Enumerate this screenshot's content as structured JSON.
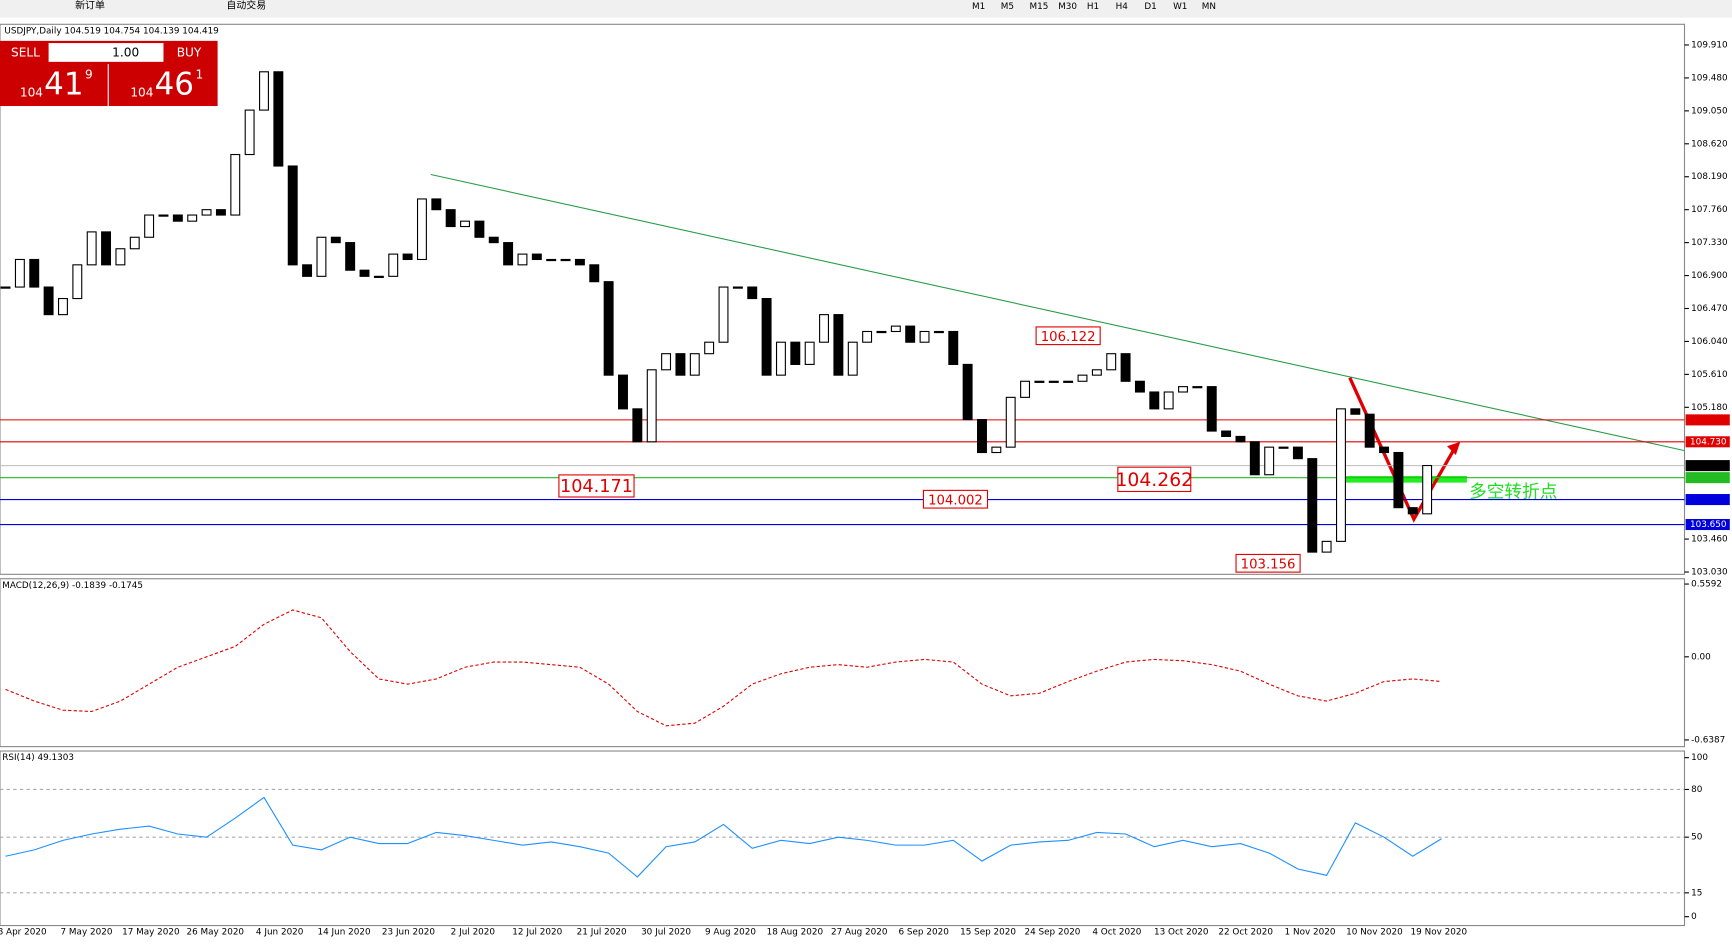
{
  "toolbar": {
    "buttons": [
      "新订单",
      "自动交易"
    ],
    "timeframes": [
      "M1",
      "M5",
      "M15",
      "M30",
      "H1",
      "H4",
      "D1",
      "W1",
      "MN"
    ]
  },
  "trade_panel": {
    "sell": "SELL",
    "lot": "1.00",
    "buy": "BUY",
    "sell_price": {
      "big": "104",
      "main": "41",
      "small": "9"
    },
    "buy_price": {
      "big": "104",
      "main": "46",
      "small": "1"
    }
  },
  "chart_data": [
    {
      "type": "candlestick",
      "title": "USDJPY,Daily  104.519 104.754 104.139 104.419",
      "x": [
        "8 Apr 2020",
        "7 May 2020",
        "17 May 2020",
        "26 May 2020",
        "4 Jun 2020",
        "14 Jun 2020",
        "23 Jun 2020",
        "2 Jul 2020",
        "12 Jul 2020",
        "21 Jul 2020",
        "30 Jul 2020",
        "9 Aug 2020",
        "18 Aug 2020",
        "27 Aug 2020",
        "6 Sep 2020",
        "15 Sep 2020",
        "24 Sep 2020",
        "4 Oct 2020",
        "13 Oct 2020",
        "22 Oct 2020",
        "1 Nov 2020",
        "10 Nov 2020",
        "19 Nov 2020"
      ],
      "closes": [
        106.75,
        107.11,
        106.75,
        106.39,
        106.6,
        107.04,
        107.47,
        107.04,
        107.25,
        107.4,
        107.69,
        107.69,
        107.61,
        107.69,
        107.76,
        107.69,
        108.48,
        109.06,
        109.56,
        108.33,
        107.04,
        106.89,
        107.4,
        107.33,
        106.97,
        106.89,
        106.89,
        107.18,
        107.11,
        107.9,
        107.76,
        107.54,
        107.61,
        107.4,
        107.33,
        107.04,
        107.18,
        107.11,
        107.11,
        107.11,
        107.04,
        106.82,
        105.6,
        105.16,
        104.73,
        105.67,
        105.88,
        105.6,
        105.88,
        106.03,
        106.75,
        106.75,
        106.6,
        105.6,
        106.03,
        105.74,
        106.03,
        106.39,
        105.6,
        106.03,
        106.17,
        106.17,
        106.24,
        106.03,
        106.17,
        106.17,
        105.74,
        105.02,
        104.59,
        104.66,
        105.31,
        105.52,
        105.52,
        105.52,
        105.52,
        105.6,
        105.67,
        105.88,
        105.52,
        105.38,
        105.16,
        105.38,
        105.45,
        105.45,
        104.87,
        104.8,
        104.73,
        104.3,
        104.66,
        104.66,
        104.51,
        103.29,
        103.43,
        105.16,
        105.09,
        104.66,
        104.59,
        103.87,
        103.79,
        104.42
      ],
      "up_color": "#ffffff",
      "down_color": "#000000",
      "ylim": [
        103.0,
        110.18
      ],
      "yticks": [
        {
          "value": 109.91,
          "label": "109.910"
        },
        {
          "value": 109.48,
          "label": "109.480"
        },
        {
          "value": 109.05,
          "label": "109.050"
        },
        {
          "value": 108.62,
          "label": "108.620"
        },
        {
          "value": 108.19,
          "label": "108.190"
        },
        {
          "value": 107.76,
          "label": "107.760"
        },
        {
          "value": 107.33,
          "label": "107.330"
        },
        {
          "value": 106.9,
          "label": "106.900"
        },
        {
          "value": 106.47,
          "label": "106.470"
        },
        {
          "value": 106.04,
          "label": "106.040"
        },
        {
          "value": 105.61,
          "label": "105.610"
        },
        {
          "value": 105.18,
          "label": "105.180"
        },
        {
          "value": 103.46,
          "label": "103.460"
        },
        {
          "value": 103.03,
          "label": "103.030"
        }
      ],
      "levels": [
        {
          "value": 105.016,
          "color": "#e00000"
        },
        {
          "value": 104.73,
          "label": "104.730",
          "color": "#e00000"
        },
        {
          "value": 104.419,
          "color": "#000000"
        },
        {
          "value": 104.262,
          "color": "#22bb22"
        },
        {
          "value": 103.976,
          "color": "#0000dd"
        },
        {
          "value": 103.65,
          "label": "103.650",
          "color": "#0000dd"
        }
      ],
      "annotations": [
        106.122,
        104.171,
        104.002,
        104.262,
        103.156
      ],
      "note": "多空转折点"
    },
    {
      "type": "line",
      "title": "MACD(12,26,9) -0.1839 -0.1745",
      "color": "#e00000",
      "dashed": true,
      "ylim": [
        -0.69,
        0.6
      ],
      "yticks": [
        0.5592,
        {
          "value": 0,
          "label": "0.00"
        },
        -0.6387
      ],
      "values": [
        -0.25,
        -0.34,
        -0.41,
        -0.42,
        -0.34,
        -0.21,
        -0.08,
        0,
        0.08,
        0.25,
        0.36,
        0.3,
        0.04,
        -0.17,
        -0.21,
        -0.17,
        -0.08,
        -0.04,
        -0.04,
        -0.06,
        -0.08,
        -0.21,
        -0.42,
        -0.53,
        -0.51,
        -0.38,
        -0.21,
        -0.13,
        -0.08,
        -0.06,
        -0.08,
        -0.04,
        -0.02,
        -0.04,
        -0.21,
        -0.3,
        -0.28,
        -0.19,
        -0.11,
        -0.04,
        -0.02,
        -0.03,
        -0.06,
        -0.11,
        -0.21,
        -0.3,
        -0.34,
        -0.28,
        -0.19,
        -0.17,
        -0.19
      ]
    },
    {
      "type": "line",
      "title": "RSI(14) 49.1303",
      "color": "#1e90ff",
      "dashed": false,
      "ylim": [
        0,
        100
      ],
      "yticks": [
        100,
        80,
        50,
        15,
        0
      ],
      "values": [
        38,
        42,
        48,
        52,
        55,
        57,
        52,
        50,
        62,
        75,
        45,
        42,
        50,
        46,
        46,
        53,
        51,
        48,
        45,
        47,
        44,
        40,
        25,
        44,
        47,
        58,
        43,
        48,
        46,
        50,
        48,
        45,
        45,
        48,
        35,
        45,
        47,
        48,
        53,
        52,
        44,
        48,
        44,
        46,
        40,
        30,
        26,
        59,
        50,
        38,
        49
      ]
    }
  ]
}
